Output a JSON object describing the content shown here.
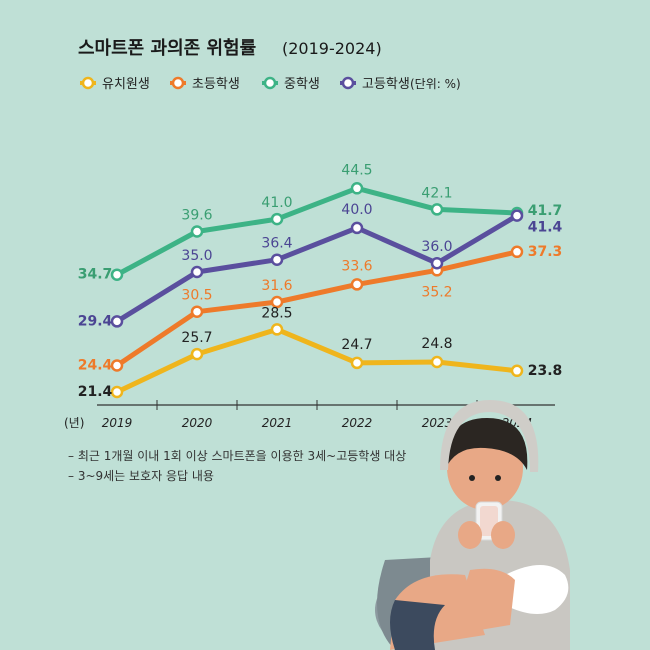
{
  "chart_data": {
    "type": "line",
    "title": "스마트폰 과의존 위험률",
    "title_years": "(2019-2024)",
    "unit_label": "(단위: %)",
    "x_unit_label": "(년)",
    "categories": [
      "2019",
      "2020",
      "2021",
      "2022",
      "2023",
      "2024"
    ],
    "ylim": [
      20,
      46
    ],
    "grid": false,
    "legend_position": "top-left",
    "series": [
      {
        "name": "유치원생",
        "values": [
          21.4,
          25.7,
          28.5,
          24.7,
          24.8,
          23.8
        ],
        "color": "#efb51c"
      },
      {
        "name": "초등학생",
        "values": [
          24.4,
          30.5,
          31.6,
          33.6,
          35.2,
          37.3
        ],
        "color": "#ee7a2a"
      },
      {
        "name": "중학생",
        "values": [
          34.7,
          39.6,
          41.0,
          44.5,
          42.1,
          41.7
        ],
        "color": "#3db386"
      },
      {
        "name": "고등학생",
        "values": [
          29.4,
          35.0,
          36.4,
          40.0,
          36.0,
          41.4
        ],
        "color": "#5a4f9e"
      }
    ],
    "label_colors": [
      "#222222",
      "#ee7a2a",
      "#3a9e72",
      "#4b4593"
    ],
    "last_label_colors": [
      "#222222",
      "#ee7a2a",
      "#3a9e72",
      "#4b4593"
    ]
  },
  "notes": [
    "– 최근 1개월 이내 1회 이상 스마트폰을 이용한 3세~고등학생 대상",
    "– 3~9세는 보호자 응답 내용"
  ],
  "illustration": "teen-with-phone"
}
